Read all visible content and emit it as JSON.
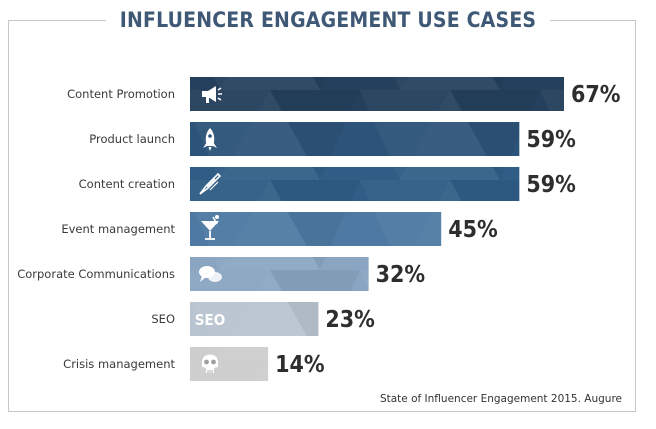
{
  "chart_data": {
    "type": "bar",
    "orientation": "horizontal",
    "title": "INFLUENCER ENGAGEMENT USE CASES",
    "categories": [
      "Content Promotion",
      "Product launch",
      "Content creation",
      "Event management",
      "Corporate Communications",
      "SEO",
      "Crisis management"
    ],
    "values": [
      67,
      59,
      59,
      45,
      32,
      23,
      14
    ],
    "value_labels": [
      "67%",
      "59%",
      "59%",
      "45%",
      "32%",
      "23%",
      "14%"
    ],
    "icons": [
      "megaphone-icon",
      "rocket-icon",
      "quill-pen-icon",
      "cocktail-glass-icon",
      "speech-bubbles-icon",
      "seo-icon",
      "skull-icon"
    ],
    "icon_text": {
      "seo": "SEO"
    },
    "bar_colors": [
      "#24405d",
      "#2c5379",
      "#2f5d86",
      "#4e79a3",
      "#8aa5c2",
      "#b8c4d0",
      "#cdcdcd"
    ],
    "xlim": [
      0,
      67
    ],
    "grid": false,
    "legend": "none"
  },
  "source": "State of Influencer Engagement 2015. Augure"
}
